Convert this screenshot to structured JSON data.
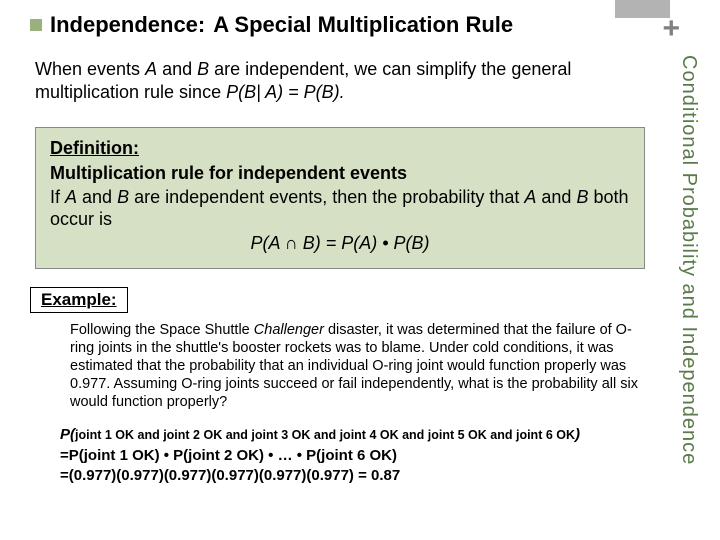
{
  "accent": {
    "color": "#b3b3b3"
  },
  "plus": "+",
  "sideLabel": "Conditional Probability and Independence",
  "title": {
    "lead": "Independence:",
    "rest": "A Special Multiplication Rule"
  },
  "intro": {
    "part1": "When events ",
    "A": "A",
    "part2": " and ",
    "B": "B",
    "part3": " are independent, we can simplify the general multiplication rule since ",
    "formula": "P(B| A) = P(B).",
    "Pitalic": "P",
    "Bitalic": "B",
    "Aitalic": "A"
  },
  "definition": {
    "title": "Definition:",
    "line1": "Multiplication rule for independent events",
    "body1": "If ",
    "body2": " and ",
    "body3": " are independent events, then the probability that ",
    "body4": " and ",
    "body5": " both occur is",
    "A": "A",
    "B": "B",
    "formula": "P(A ∩ B) = P(A) • P(B)"
  },
  "example": {
    "label": "Example:",
    "body": "Following the Space Shuttle Challenger disaster, it was determined that the failure of O-ring joints in the shuttle's booster rockets was to blame. Under cold conditions, it was estimated that the probability that an individual O-ring joint would function properly was 0.977. Assuming O-ring joints succeed or fail independently, what is the probability all six would function properly?",
    "challenger": "Challenger"
  },
  "calc": {
    "line1_lead": "P(",
    "line1_subs": "joint 1 OK and joint 2 OK and joint 3 OK and joint 4 OK and joint 5 OK and joint 6 OK",
    "line1_end": ")",
    "line2": "=P(joint 1 OK) • P(joint 2 OK) • … • P(joint 6 OK)",
    "line3": "=(0.977)(0.977)(0.977)(0.977)(0.977)(0.977) = 0.87"
  },
  "colors": {
    "defBox": "#d6e0c4",
    "sideText": "#5a7a4a",
    "bullet": "#9bb07f"
  }
}
